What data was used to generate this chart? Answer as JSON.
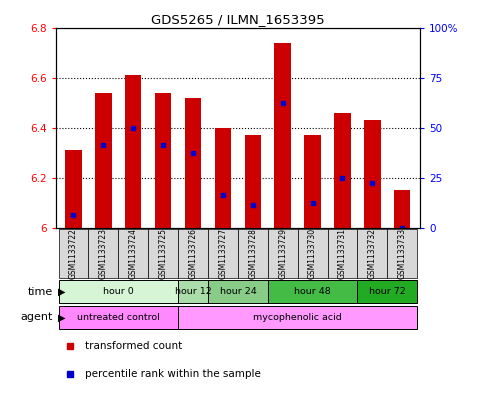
{
  "title": "GDS5265 / ILMN_1653395",
  "samples": [
    "GSM1133722",
    "GSM1133723",
    "GSM1133724",
    "GSM1133725",
    "GSM1133726",
    "GSM1133727",
    "GSM1133728",
    "GSM1133729",
    "GSM1133730",
    "GSM1133731",
    "GSM1133732",
    "GSM1133733"
  ],
  "bar_values": [
    6.31,
    6.54,
    6.61,
    6.54,
    6.52,
    6.4,
    6.37,
    6.74,
    6.37,
    6.46,
    6.43,
    6.15
  ],
  "percentile_values": [
    6.05,
    6.33,
    6.4,
    6.33,
    6.3,
    6.13,
    6.09,
    6.5,
    6.1,
    6.2,
    6.18,
    6.0
  ],
  "y_min": 6.0,
  "y_max": 6.8,
  "bar_color": "#cc0000",
  "percentile_color": "#0000cc",
  "time_groups": [
    {
      "label": "hour 0",
      "start": 0,
      "end": 3,
      "color": "#d6f5d6"
    },
    {
      "label": "hour 12",
      "start": 4,
      "end": 4,
      "color": "#aaddaa"
    },
    {
      "label": "hour 24",
      "start": 5,
      "end": 6,
      "color": "#88cc88"
    },
    {
      "label": "hour 48",
      "start": 7,
      "end": 9,
      "color": "#44bb44"
    },
    {
      "label": "hour 72",
      "start": 10,
      "end": 11,
      "color": "#22aa22"
    }
  ],
  "agent_groups": [
    {
      "label": "untreated control",
      "start": 0,
      "end": 3,
      "color": "#ff88ff"
    },
    {
      "label": "mycophenolic acid",
      "start": 4,
      "end": 11,
      "color": "#ff99ff"
    }
  ],
  "legend_items": [
    {
      "label": "transformed count",
      "color": "#cc0000",
      "marker": "s"
    },
    {
      "label": "percentile rank within the sample",
      "color": "#0000cc",
      "marker": "s"
    }
  ]
}
